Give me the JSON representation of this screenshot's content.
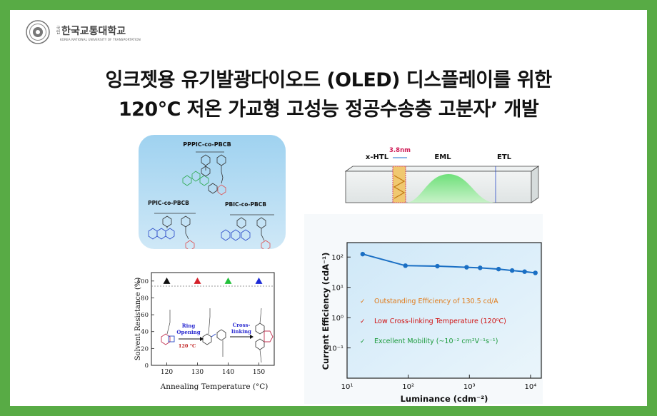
{
  "logo": {
    "prefix": "국립",
    "name_ko": "한국교통대학교",
    "name_en": "KOREA NATIONAL UNIVERSITY OF TRANSPORTATION"
  },
  "headline": {
    "line1": "잉크젯용 유기발광다이오드 (OLED) 디스플레이를 위한",
    "line2": "120℃ 저온 가교형 고성능 정공수송층 고분자’ 개발"
  },
  "structures": {
    "top_label": "PPPIC-co-PBCB",
    "left_label": "PPIC-co-PBCB",
    "right_label": "PBIC-co-PBCB"
  },
  "device": {
    "layers": [
      "x-HTL",
      "EML",
      "ETL"
    ],
    "thickness_label": "3.8nm"
  },
  "solvent_chart": {
    "ylabel": "Solvent Resistance (%)",
    "xlabel": "Annealing Temperature (°C)",
    "x_ticks": [
      "120",
      "130",
      "140",
      "150"
    ],
    "y_ticks": [
      "0",
      "20",
      "40",
      "60",
      "80",
      "100"
    ],
    "reaction_label_1a": "Ring",
    "reaction_label_1b": "Opening",
    "reaction_temp": "120 °C",
    "reaction_label_2a": "Cross-",
    "reaction_label_2b": "linking",
    "points": [
      {
        "x": 120,
        "y": 100,
        "color": "#111111"
      },
      {
        "x": 130,
        "y": 100,
        "color": "#d4202a"
      },
      {
        "x": 140,
        "y": 100,
        "color": "#22c03a"
      },
      {
        "x": 150,
        "y": 100,
        "color": "#1c2ad6"
      }
    ]
  },
  "chart_data": {
    "type": "line",
    "xlabel": "Luminance (cdm⁻²)",
    "ylabel": "Current Efficiency (cdA⁻¹)",
    "xscale": "log",
    "yscale": "log",
    "xlim": [
      10,
      15000
    ],
    "ylim": [
      0.01,
      300
    ],
    "x_ticks": [
      "10¹",
      "10²",
      "10³",
      "10⁴"
    ],
    "y_ticks": [
      "10⁻¹",
      "10⁰",
      "10¹",
      "10²"
    ],
    "series": [
      {
        "color": "#1a6fc4",
        "x": [
          18,
          90,
          300,
          900,
          1500,
          3000,
          5000,
          8000,
          12000
        ],
        "y": [
          125,
          52,
          50,
          46,
          44,
          40,
          36,
          33,
          30
        ]
      }
    ],
    "annotations": [
      {
        "mark": "✓",
        "text": "Outstanding Efficiency of 130.5 cd/A",
        "color": "#e07a18"
      },
      {
        "mark": "✓",
        "text": "Low Cross-linking Temperature (120⁰C)",
        "color": "#d01010"
      },
      {
        "mark": "✓",
        "text": "Excellent Mobility (~10⁻² cm²V⁻¹s⁻¹)",
        "color": "#1a9a3a"
      }
    ]
  }
}
